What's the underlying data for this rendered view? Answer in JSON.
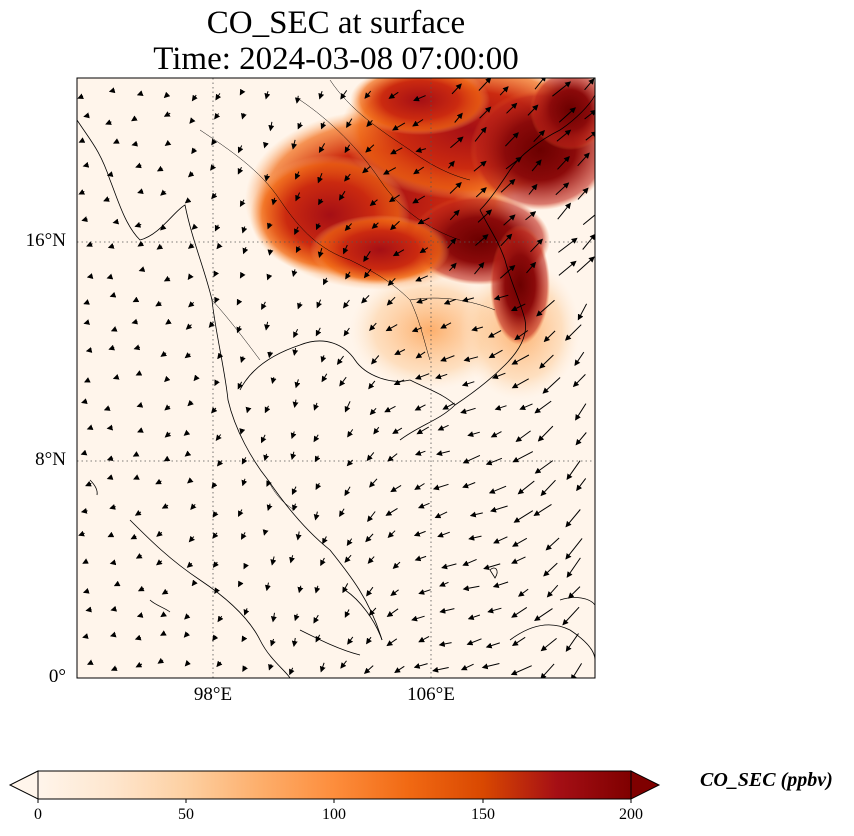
{
  "title": {
    "line1": "CO_SEC at surface",
    "line2": "Time: 2024-03-08 07:00:00"
  },
  "map": {
    "lon_range": [
      93,
      112
    ],
    "lat_range": [
      0,
      22
    ],
    "lat_ticks": [
      {
        "value": 16,
        "label": "16°N"
      },
      {
        "value": 8,
        "label": "8°N"
      },
      {
        "value": 0,
        "label": "0°"
      }
    ],
    "lon_ticks": [
      {
        "value": 98,
        "label": "98°E"
      },
      {
        "value": 106,
        "label": "106°E"
      }
    ],
    "gridlines": "dotted",
    "plume": "high CO_SEC over northern Indochina (Laos, northern Vietnam, southern China) peaking near 200 ppbv along the Vietnam coast ~15-18°N"
  },
  "colorbar": {
    "label": "CO_SEC (ppbv)",
    "min": 0,
    "max": 200,
    "ticks": [
      "0",
      "50",
      "100",
      "150",
      "200"
    ],
    "extend": "both",
    "colors": [
      "#fff5eb",
      "#fee6ce",
      "#fdd0a2",
      "#fdae6b",
      "#fd8d3c",
      "#f16913",
      "#d94801",
      "#a50f15",
      "#7f0000"
    ]
  }
}
